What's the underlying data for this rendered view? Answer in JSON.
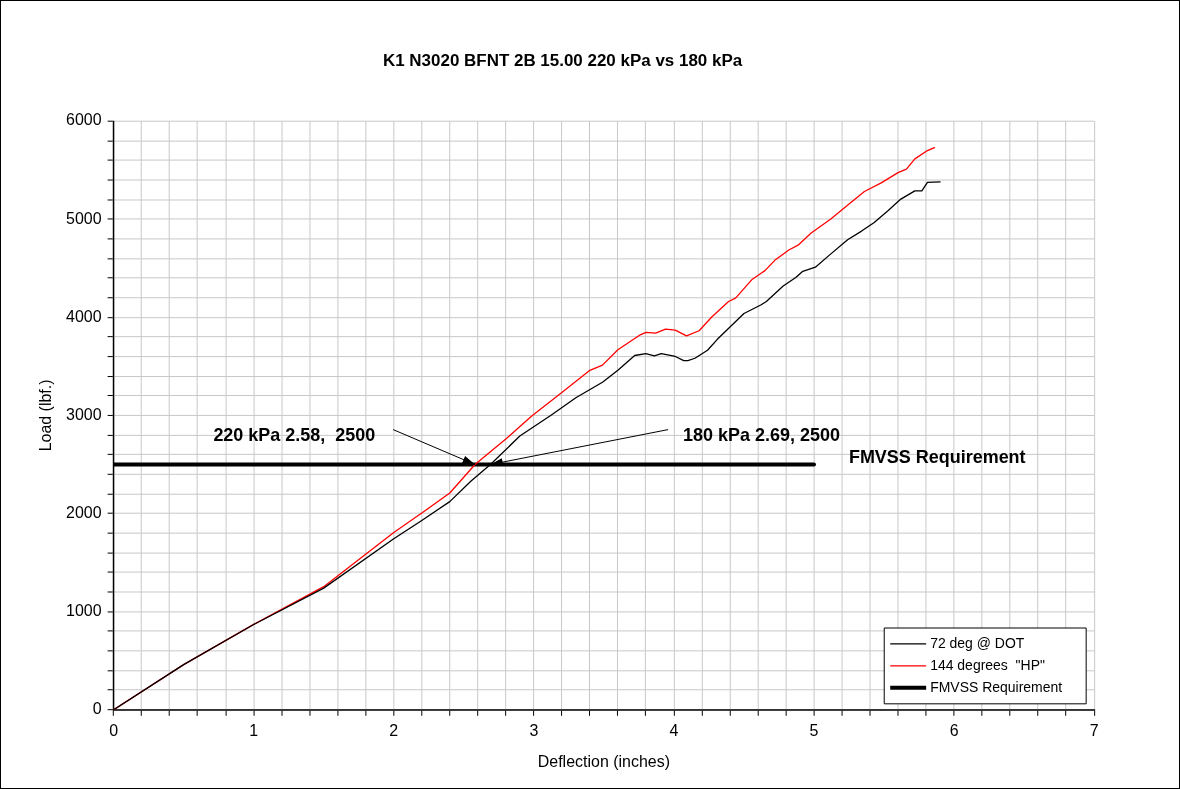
{
  "chart_data": {
    "type": "line",
    "title": "K1 N3020 BFNT 2B 15.00 220 kPa vs 180 kPa",
    "xlabel": "Deflection (inches)",
    "ylabel": "Load (lbf.)",
    "xlim": [
      0,
      7
    ],
    "ylim": [
      0,
      6000
    ],
    "xticks": [
      0,
      {
        "value": 0.2,
        "label": null
      },
      {
        "value": 0.4,
        "label": null
      },
      {
        "value": 0.6,
        "label": null
      },
      {
        "value": 0.8,
        "label": null
      },
      1,
      {
        "value": 1.2,
        "label": null
      },
      {
        "value": 1.4,
        "label": null
      },
      {
        "value": 1.6,
        "label": null
      },
      {
        "value": 1.8,
        "label": null
      },
      2,
      {
        "value": 2.2,
        "label": null
      },
      {
        "value": 2.4,
        "label": null
      },
      {
        "value": 2.6,
        "label": null
      },
      {
        "value": 2.8,
        "label": null
      },
      3,
      {
        "value": 3.2,
        "label": null
      },
      {
        "value": 3.4,
        "label": null
      },
      {
        "value": 3.6,
        "label": null
      },
      {
        "value": 3.8,
        "label": null
      },
      4,
      {
        "value": 4.2,
        "label": null
      },
      {
        "value": 4.4,
        "label": null
      },
      {
        "value": 4.6,
        "label": null
      },
      {
        "value": 4.8,
        "label": null
      },
      5,
      {
        "value": 5.2,
        "label": null
      },
      {
        "value": 5.4,
        "label": null
      },
      {
        "value": 5.6,
        "label": null
      },
      {
        "value": 5.8,
        "label": null
      },
      6,
      {
        "value": 6.2,
        "label": null
      },
      {
        "value": 6.4,
        "label": null
      },
      {
        "value": 6.6,
        "label": null
      },
      {
        "value": 6.8,
        "label": null
      },
      7
    ],
    "yticks": [
      0,
      {
        "value": 200,
        "label": null
      },
      {
        "value": 400,
        "label": null
      },
      {
        "value": 600,
        "label": null
      },
      {
        "value": 800,
        "label": null
      },
      1000,
      {
        "value": 1200,
        "label": null
      },
      {
        "value": 1400,
        "label": null
      },
      {
        "value": 1600,
        "label": null
      },
      {
        "value": 1800,
        "label": null
      },
      2000,
      {
        "value": 2200,
        "label": null
      },
      {
        "value": 2400,
        "label": null
      },
      {
        "value": 2600,
        "label": null
      },
      {
        "value": 2800,
        "label": null
      },
      3000,
      {
        "value": 3200,
        "label": null
      },
      {
        "value": 3400,
        "label": null
      },
      {
        "value": 3600,
        "label": null
      },
      {
        "value": 3800,
        "label": null
      },
      4000,
      {
        "value": 4200,
        "label": null
      },
      {
        "value": 4400,
        "label": null
      },
      {
        "value": 4600,
        "label": null
      },
      {
        "value": 4800,
        "label": null
      },
      5000,
      {
        "value": 5200,
        "label": null
      },
      {
        "value": 5400,
        "label": null
      },
      {
        "value": 5600,
        "label": null
      },
      {
        "value": 5800,
        "label": null
      },
      6000
    ],
    "grid": true,
    "legend": "bottom right",
    "marker": "none",
    "line_style": "solid",
    "series": [
      {
        "name": "72 deg @ DOT",
        "color": "#000000",
        "x": [
          0,
          0.5,
          1,
          1.5,
          2,
          2.2,
          2.4,
          2.55,
          2.69,
          2.9,
          3.12,
          3.3,
          3.49,
          3.6,
          3.72,
          3.8,
          3.86,
          3.91,
          4.01,
          4.07,
          4.1,
          4.15,
          4.24,
          4.31,
          4.5,
          4.62,
          4.66,
          4.78,
          4.87,
          4.92,
          5.01,
          5.11,
          5.24,
          5.34,
          5.43,
          5.53,
          5.62,
          5.72,
          5.77,
          5.81,
          5.9
        ],
        "values": [
          0,
          460,
          869,
          1240,
          1744,
          1930,
          2122,
          2330,
          2500,
          2790,
          3000,
          3180,
          3338,
          3460,
          3611,
          3629,
          3608,
          3629,
          3601,
          3559,
          3559,
          3583,
          3664,
          3776,
          4039,
          4126,
          4161,
          4319,
          4406,
          4469,
          4511,
          4634,
          4791,
          4879,
          4967,
          5089,
          5205,
          5289,
          5289,
          5376,
          5380
        ]
      },
      {
        "name": "144 degrees  \"HP\"",
        "color": "#ff0000",
        "x": [
          0,
          0.5,
          1,
          1.5,
          2,
          2.2,
          2.4,
          2.58,
          2.8,
          2.985,
          3.2,
          3.4,
          3.49,
          3.6,
          3.76,
          3.8,
          3.87,
          3.94,
          4.01,
          4.09,
          4.18,
          4.27,
          4.39,
          4.44,
          4.56,
          4.65,
          4.72,
          4.82,
          4.89,
          4.98,
          5.12,
          5.27,
          5.36,
          5.48,
          5.6,
          5.66,
          5.72,
          5.81,
          5.86
        ],
        "values": [
          0,
          460,
          870,
          1255,
          1807,
          2005,
          2210,
          2500,
          2760,
          2995,
          3233,
          3460,
          3513,
          3670,
          3822,
          3846,
          3839,
          3880,
          3870,
          3811,
          3863,
          4003,
          4161,
          4196,
          4389,
          4476,
          4581,
          4686,
          4739,
          4860,
          5002,
          5177,
          5282,
          5370,
          5475,
          5510,
          5615,
          5700,
          5730
        ]
      },
      {
        "name": "FMVSS Requirement",
        "color": "#000000",
        "x": [
          0,
          5
        ],
        "values": [
          2500,
          2500
        ]
      }
    ],
    "annotations": [
      {
        "text": "220 kPa 2.58,  2500",
        "x": 2.58,
        "y": 2500
      },
      {
        "text": "180 kPa 2.69, 2500",
        "x": 2.69,
        "y": 2500
      }
    ]
  }
}
